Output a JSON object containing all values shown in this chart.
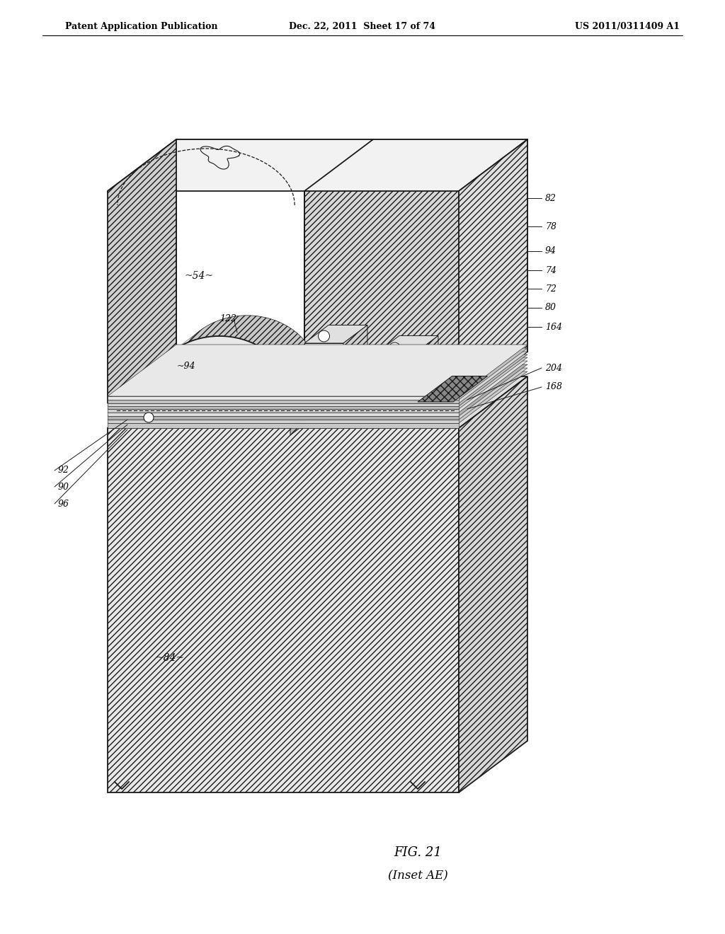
{
  "fig_title": "FIG. 21",
  "fig_subtitle": "(Inset AE)",
  "header_left": "Patent Application Publication",
  "header_mid": "Dec. 22, 2011  Sheet 17 of 74",
  "header_right": "US 2011/0311409 A1",
  "bg_color": "#ffffff",
  "lc": "#1a1a1a",
  "lw_main": 1.3,
  "lw_thin": 0.7,
  "label_fs": 9.0,
  "caption_fs": 13.0,
  "header_fs": 9.0
}
